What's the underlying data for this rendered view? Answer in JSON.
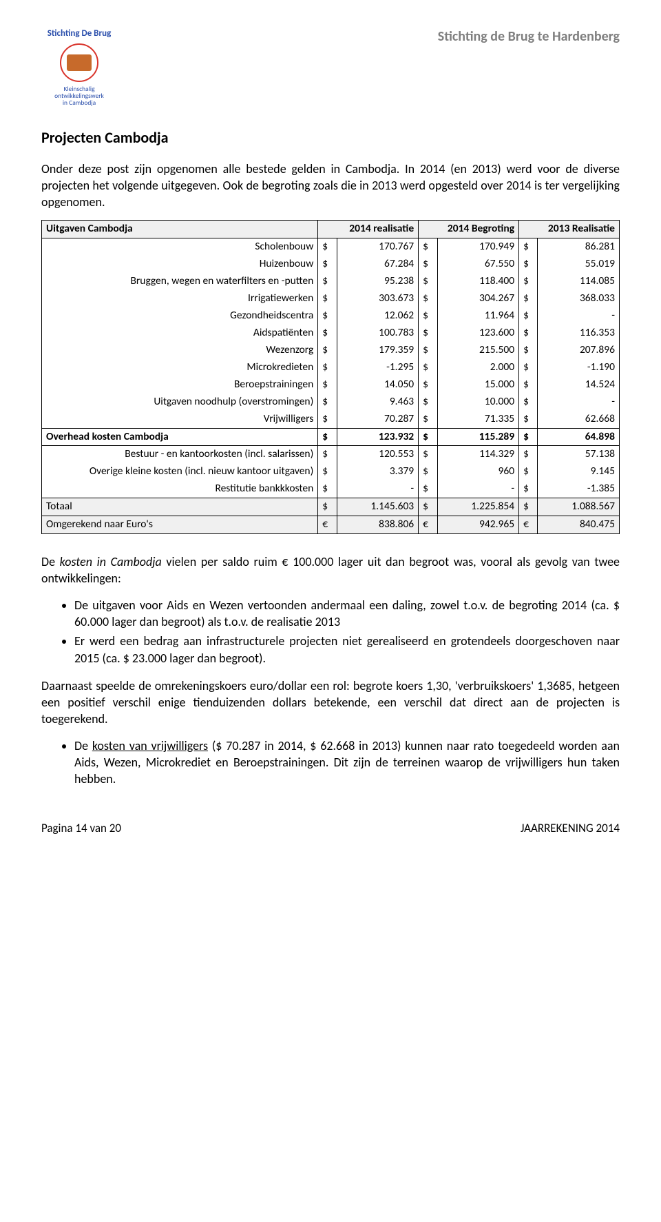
{
  "header": {
    "logo_title": "Stichting De Brug",
    "logo_sub_line1": "Kleinschalig",
    "logo_sub_line2": "ontwikkelingswerk",
    "logo_sub_line3": "in Cambodja",
    "org_name": "Stichting de Brug te Hardenberg"
  },
  "section_title": "Projecten Cambodja",
  "para_intro": "Onder deze post zijn opgenomen alle bestede gelden in Cambodja. In 2014 (en 2013) werd voor de diverse projecten het volgende uitgegeven. Ook de begroting zoals die in 2013 werd opgesteld over 2014 is ter vergelijking opgenomen.",
  "table": {
    "col_headers": [
      "Uitgaven Cambodja",
      "2014 realisatie",
      "2014 Begroting",
      "2013 Realisatie"
    ],
    "currency_dollar": "$",
    "currency_euro": "€",
    "rows_uitgaven": [
      {
        "label": "Scholenbouw",
        "c1": "170.767",
        "c2": "170.949",
        "c3": "86.281"
      },
      {
        "label": "Huizenbouw",
        "c1": "67.284",
        "c2": "67.550",
        "c3": "55.019"
      },
      {
        "label": "Bruggen, wegen en waterfilters en -putten",
        "c1": "95.238",
        "c2": "118.400",
        "c3": "114.085"
      },
      {
        "label": "Irrigatiewerken",
        "c1": "303.673",
        "c2": "304.267",
        "c3": "368.033"
      },
      {
        "label": "Gezondheidscentra",
        "c1": "12.062",
        "c2": "11.964",
        "c3": "-"
      },
      {
        "label": "Aidspatiënten",
        "c1": "100.783",
        "c2": "123.600",
        "c3": "116.353"
      },
      {
        "label": "Wezenzorg",
        "c1": "179.359",
        "c2": "215.500",
        "c3": "207.896"
      },
      {
        "label": "Microkredieten",
        "c1": "-1.295",
        "c2": "2.000",
        "c3": "-1.190"
      },
      {
        "label": "Beroepstrainingen",
        "c1": "14.050",
        "c2": "15.000",
        "c3": "14.524"
      },
      {
        "label": "Uitgaven noodhulp (overstromingen)",
        "c1": "9.463",
        "c2": "10.000",
        "c3": "-"
      },
      {
        "label": "Vrijwilligers",
        "c1": "70.287",
        "c2": "71.335",
        "c3": "62.668"
      }
    ],
    "overhead_header": "Overhead kosten Cambodja",
    "overhead_totals": {
      "c1": "123.932",
      "c2": "115.289",
      "c3": "64.898"
    },
    "rows_overhead": [
      {
        "label": "Bestuur - en kantoorkosten (incl. salarissen)",
        "c1": "120.553",
        "c2": "114.329",
        "c3": "57.138"
      },
      {
        "label": "Overige kleine kosten (incl. nieuw kantoor uitgaven)",
        "c1": "3.379",
        "c2": "960",
        "c3": "9.145"
      },
      {
        "label": "Restitutie bankkkosten",
        "c1": "-",
        "c2": "-",
        "c3": "-1.385"
      }
    ],
    "total_label": "Totaal",
    "total_vals": {
      "c1": "1.145.603",
      "c2": "1.225.854",
      "c3": "1.088.567"
    },
    "euro_label": "Omgerekend naar Euro's",
    "euro_vals": {
      "c1": "838.806",
      "c2": "942.965",
      "c3": "840.475"
    }
  },
  "para_kosten_intro": "De kosten in Cambodja vielen per saldo ruim € 100.000 lager uit dan begroot was, vooral als gevolg van twee ontwikkelingen:",
  "bullets_kosten": [
    "De uitgaven voor Aids en Wezen vertoonden andermaal een daling, zowel t.o.v. de begroting 2014 (ca. $ 60.000 lager dan begroot) als t.o.v. de realisatie 2013",
    "Er werd een bedrag aan infrastructurele projecten niet gerealiseerd en grotendeels doorgeschoven naar 2015 (ca. $ 23.000 lager dan begroot)."
  ],
  "para_koers": "Daarnaast speelde de omrekeningskoers euro/dollar een rol: begrote koers 1,30, 'verbruikskoers' 1,3685, hetgeen een positief verschil enige tienduizenden dollars betekende, een verschil dat direct aan de projecten is toegerekend.",
  "bullet_vrijw_prefix": "De ",
  "bullet_vrijw_link": "kosten van vrijwilligers",
  "bullet_vrijw_rest": " ($ 70.287 in 2014, $ 62.668 in 2013) kunnen naar rato toegedeeld worden aan Aids, Wezen, Microkrediet en Beroepstrainingen. Dit zijn de terreinen waarop de vrijwilligers hun taken hebben.",
  "footer": {
    "left": "Pagina 14 van 20",
    "right": "JAARREKENING 2014"
  }
}
